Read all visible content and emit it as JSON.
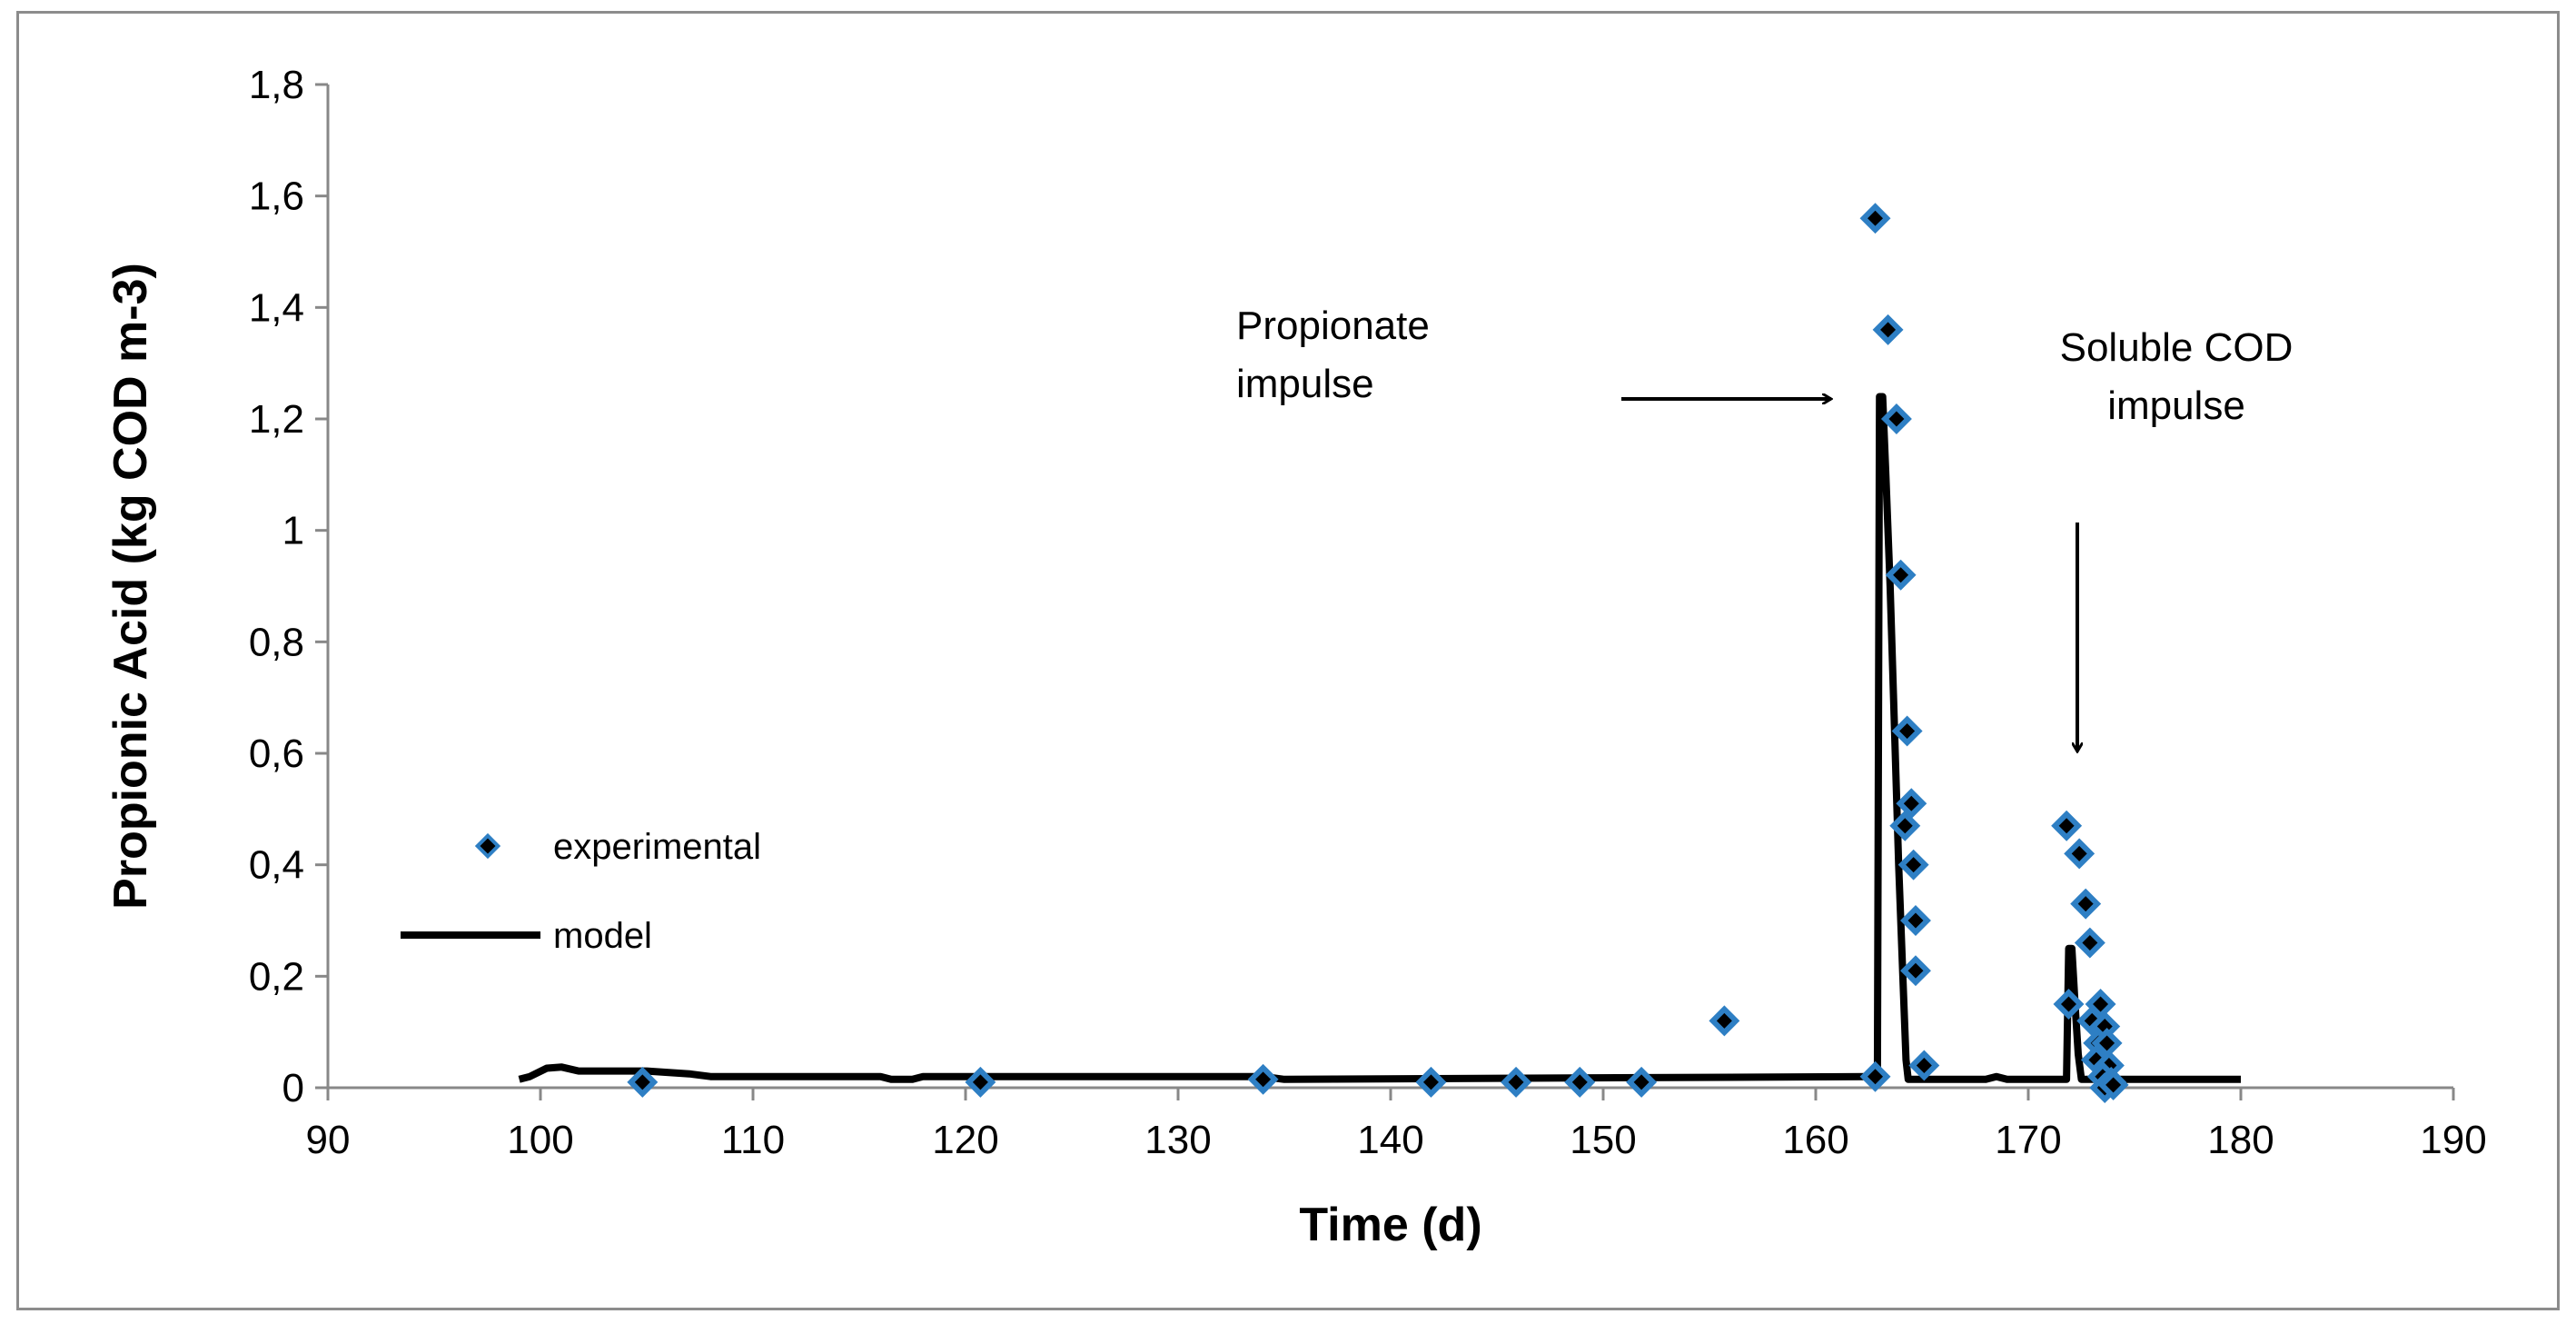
{
  "chart_data": {
    "type": "scatter",
    "title": "",
    "xlabel": "Time (d)",
    "ylabel": "Propionic Acid (kg COD m-3)",
    "xlim": [
      90,
      190
    ],
    "ylim": [
      0,
      1.8
    ],
    "x_ticks": [
      "90",
      "100",
      "110",
      "120",
      "130",
      "140",
      "150",
      "160",
      "170",
      "180",
      "190"
    ],
    "y_ticks": [
      "0",
      "0,2",
      "0,4",
      "0,6",
      "0,8",
      "1",
      "1,2",
      "1,4",
      "1,6",
      "1,8"
    ],
    "grid": false,
    "legend_position": "left",
    "series": [
      {
        "name": "experimental",
        "kind": "markers",
        "marker_color": "#2e7fc4",
        "marker_center_color": "#000000",
        "points": [
          [
            104.8,
            0.01
          ],
          [
            120.7,
            0.01
          ],
          [
            134.0,
            0.015
          ],
          [
            141.9,
            0.01
          ],
          [
            145.9,
            0.01
          ],
          [
            148.9,
            0.01
          ],
          [
            151.8,
            0.01
          ],
          [
            155.7,
            0.12
          ],
          [
            162.8,
            0.02
          ],
          [
            162.8,
            1.56
          ],
          [
            163.4,
            1.36
          ],
          [
            163.8,
            1.2
          ],
          [
            164.0,
            0.92
          ],
          [
            164.3,
            0.64
          ],
          [
            164.2,
            0.47
          ],
          [
            164.5,
            0.51
          ],
          [
            164.6,
            0.4
          ],
          [
            164.7,
            0.3
          ],
          [
            164.7,
            0.21
          ],
          [
            165.1,
            0.04
          ],
          [
            171.8,
            0.47
          ],
          [
            172.4,
            0.42
          ],
          [
            172.7,
            0.33
          ],
          [
            172.9,
            0.26
          ],
          [
            171.9,
            0.15
          ],
          [
            173.0,
            0.12
          ],
          [
            173.4,
            0.15
          ],
          [
            173.6,
            0.11
          ],
          [
            173.3,
            0.08
          ],
          [
            173.7,
            0.08
          ],
          [
            173.2,
            0.05
          ],
          [
            173.8,
            0.04
          ],
          [
            173.5,
            0.02
          ],
          [
            173.9,
            0.01
          ],
          [
            173.6,
            0.0
          ],
          [
            174.0,
            0.005
          ]
        ]
      },
      {
        "name": "model",
        "kind": "line",
        "color": "#000000",
        "points": [
          [
            99.0,
            0.015
          ],
          [
            99.5,
            0.02
          ],
          [
            100.3,
            0.035
          ],
          [
            101.0,
            0.037
          ],
          [
            101.8,
            0.03
          ],
          [
            105.0,
            0.03
          ],
          [
            107.0,
            0.025
          ],
          [
            108.0,
            0.02
          ],
          [
            116.0,
            0.02
          ],
          [
            116.5,
            0.015
          ],
          [
            117.5,
            0.015
          ],
          [
            118.0,
            0.02
          ],
          [
            134.0,
            0.02
          ],
          [
            135.0,
            0.015
          ],
          [
            162.6,
            0.02
          ],
          [
            162.9,
            0.02
          ],
          [
            163.0,
            1.24
          ],
          [
            163.15,
            1.24
          ],
          [
            163.3,
            1.1
          ],
          [
            163.5,
            0.9
          ],
          [
            163.7,
            0.65
          ],
          [
            163.9,
            0.4
          ],
          [
            164.1,
            0.2
          ],
          [
            164.25,
            0.05
          ],
          [
            164.35,
            0.015
          ],
          [
            168.0,
            0.015
          ],
          [
            168.5,
            0.02
          ],
          [
            169.0,
            0.015
          ],
          [
            171.8,
            0.015
          ],
          [
            171.9,
            0.25
          ],
          [
            172.05,
            0.25
          ],
          [
            172.2,
            0.15
          ],
          [
            172.35,
            0.06
          ],
          [
            172.5,
            0.015
          ],
          [
            180.0,
            0.015
          ]
        ]
      }
    ],
    "annotations": [
      {
        "lines": [
          "Propionate",
          "impulse"
        ],
        "arrow_direction": "right",
        "arrow_target": [
          162.5,
          1.24
        ]
      },
      {
        "lines": [
          "Soluble COD",
          "impulse"
        ],
        "arrow_direction": "down",
        "arrow_target": [
          172.2,
          0.58
        ]
      }
    ]
  }
}
